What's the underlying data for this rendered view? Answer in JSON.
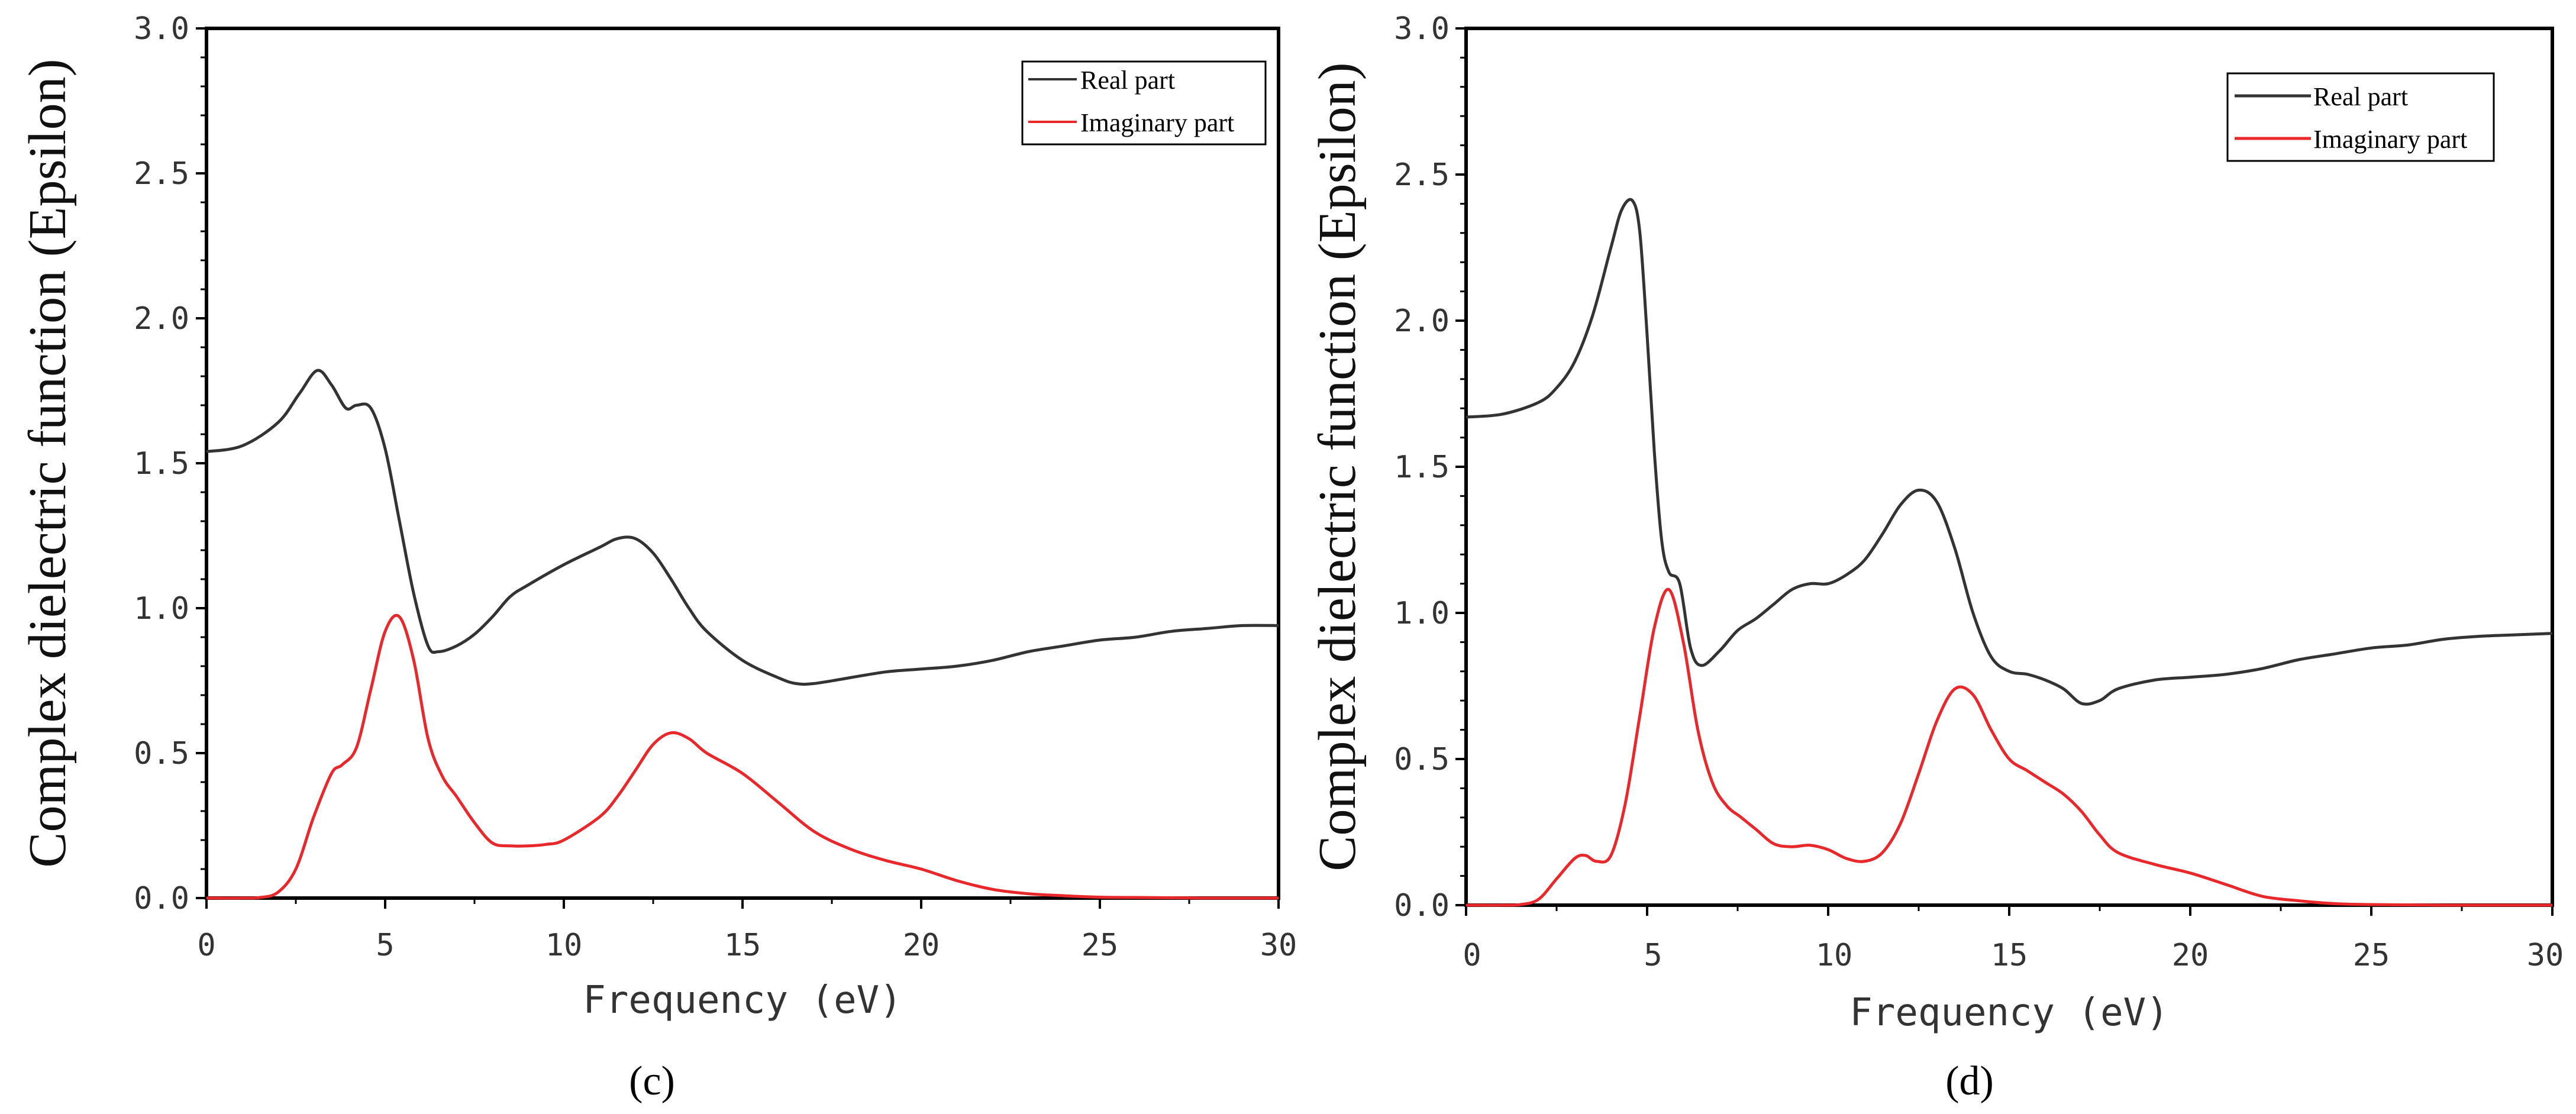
{
  "chart_data": [
    {
      "type": "line",
      "panel_label": "(c)",
      "xlabel": "Frequency (eV)",
      "ylabel": "Complex dielectric function (Epsilon)",
      "xlim": [
        0,
        30
      ],
      "ylim": [
        0,
        3.0
      ],
      "x_ticks": [
        "0",
        "5",
        "10",
        "15",
        "20",
        "25",
        "30"
      ],
      "y_ticks": [
        "0.0",
        "0.5",
        "1.0",
        "1.5",
        "2.0",
        "2.5",
        "3.0"
      ],
      "legend_placement": "top-right",
      "series": [
        {
          "name": "Real part",
          "color": "#333333",
          "x": [
            0,
            1,
            2,
            2.6,
            3.1,
            3.5,
            3.9,
            4.2,
            4.6,
            5.0,
            5.4,
            5.8,
            6.2,
            6.5,
            7.0,
            7.5,
            8,
            8.5,
            9,
            10,
            11,
            11.5,
            12,
            12.5,
            13,
            13.5,
            14,
            15,
            16,
            16.5,
            17,
            18,
            19,
            20,
            21,
            22,
            23,
            24,
            25,
            26,
            27,
            28,
            29,
            30
          ],
          "y": [
            1.54,
            1.56,
            1.64,
            1.74,
            1.82,
            1.77,
            1.69,
            1.7,
            1.69,
            1.55,
            1.3,
            1.05,
            0.87,
            0.85,
            0.87,
            0.91,
            0.97,
            1.04,
            1.08,
            1.15,
            1.21,
            1.24,
            1.24,
            1.19,
            1.1,
            1.0,
            0.92,
            0.82,
            0.76,
            0.74,
            0.74,
            0.76,
            0.78,
            0.79,
            0.8,
            0.82,
            0.85,
            0.87,
            0.89,
            0.9,
            0.92,
            0.93,
            0.94,
            0.94
          ]
        },
        {
          "name": "Imaginary part",
          "color": "#e8282b",
          "x": [
            0,
            1,
            1.5,
            2,
            2.5,
            3,
            3.5,
            3.8,
            4.2,
            4.6,
            5.0,
            5.4,
            5.8,
            6.2,
            6.6,
            7,
            7.5,
            8,
            8.5,
            9,
            9.5,
            10,
            11,
            11.5,
            12,
            12.5,
            13,
            13.5,
            14,
            15,
            16,
            17,
            18,
            19,
            20,
            21,
            22,
            23,
            24,
            25,
            26,
            27,
            28,
            29,
            30
          ],
          "y": [
            0.0,
            0.0,
            0.002,
            0.02,
            0.1,
            0.28,
            0.43,
            0.46,
            0.52,
            0.72,
            0.92,
            0.97,
            0.82,
            0.55,
            0.42,
            0.35,
            0.26,
            0.19,
            0.18,
            0.18,
            0.185,
            0.2,
            0.28,
            0.35,
            0.44,
            0.53,
            0.57,
            0.55,
            0.5,
            0.43,
            0.33,
            0.23,
            0.17,
            0.13,
            0.1,
            0.06,
            0.03,
            0.015,
            0.008,
            0.003,
            0.002,
            0.001,
            0.0,
            0.0,
            0.0
          ]
        }
      ]
    },
    {
      "type": "line",
      "panel_label": "(d)",
      "xlabel": "Frequency (eV)",
      "ylabel": "Complex dielectric function (Epsilon)",
      "xlim": [
        0,
        30
      ],
      "ylim": [
        0,
        3.0
      ],
      "x_ticks": [
        "0",
        "5",
        "10",
        "15",
        "20",
        "25",
        "30"
      ],
      "y_ticks": [
        "0.0",
        "0.5",
        "1.0",
        "1.5",
        "2.0",
        "2.5",
        "3.0"
      ],
      "legend_placement": "top-right",
      "series": [
        {
          "name": "Real part",
          "color": "#333333",
          "x": [
            0,
            1,
            2,
            2.5,
            3,
            3.5,
            4,
            4.3,
            4.6,
            4.8,
            5.0,
            5.2,
            5.4,
            5.6,
            5.9,
            6.2,
            6.5,
            7.0,
            7.5,
            8,
            8.5,
            9,
            9.5,
            10,
            10.5,
            11,
            11.5,
            12,
            12.5,
            13,
            13.5,
            14,
            14.5,
            15,
            15.5,
            16,
            16.5,
            17,
            17.5,
            18,
            19,
            20,
            21,
            22,
            23,
            24,
            25,
            26,
            27,
            28,
            29,
            30
          ],
          "y": [
            1.67,
            1.68,
            1.72,
            1.77,
            1.86,
            2.02,
            2.25,
            2.38,
            2.41,
            2.3,
            1.95,
            1.55,
            1.25,
            1.14,
            1.1,
            0.88,
            0.82,
            0.87,
            0.94,
            0.98,
            1.03,
            1.08,
            1.1,
            1.1,
            1.13,
            1.18,
            1.27,
            1.37,
            1.42,
            1.38,
            1.22,
            1.0,
            0.85,
            0.8,
            0.79,
            0.77,
            0.74,
            0.69,
            0.7,
            0.74,
            0.77,
            0.78,
            0.79,
            0.81,
            0.84,
            0.86,
            0.88,
            0.89,
            0.91,
            0.92,
            0.925,
            0.93
          ]
        },
        {
          "name": "Imaginary part",
          "color": "#e8282b",
          "x": [
            0,
            1,
            1.5,
            2,
            2.5,
            3,
            3.3,
            3.6,
            4,
            4.4,
            4.8,
            5.2,
            5.6,
            6.0,
            6.4,
            6.8,
            7.2,
            7.6,
            8,
            8.5,
            9,
            9.5,
            10,
            10.5,
            11,
            11.5,
            12,
            12.5,
            13,
            13.5,
            14,
            14.5,
            15,
            15.5,
            16,
            16.5,
            17,
            17.5,
            18,
            19,
            20,
            21,
            22,
            23,
            24,
            25,
            26,
            27,
            28,
            29,
            30
          ],
          "y": [
            0.0,
            0.0,
            0.002,
            0.02,
            0.09,
            0.16,
            0.17,
            0.15,
            0.17,
            0.35,
            0.65,
            0.95,
            1.08,
            0.9,
            0.6,
            0.42,
            0.34,
            0.3,
            0.26,
            0.21,
            0.2,
            0.205,
            0.19,
            0.16,
            0.15,
            0.18,
            0.28,
            0.45,
            0.63,
            0.74,
            0.72,
            0.6,
            0.5,
            0.46,
            0.42,
            0.38,
            0.32,
            0.24,
            0.18,
            0.14,
            0.11,
            0.07,
            0.03,
            0.015,
            0.005,
            0.002,
            0.001,
            0.0,
            0.0,
            0.0,
            0.0
          ]
        }
      ]
    }
  ]
}
